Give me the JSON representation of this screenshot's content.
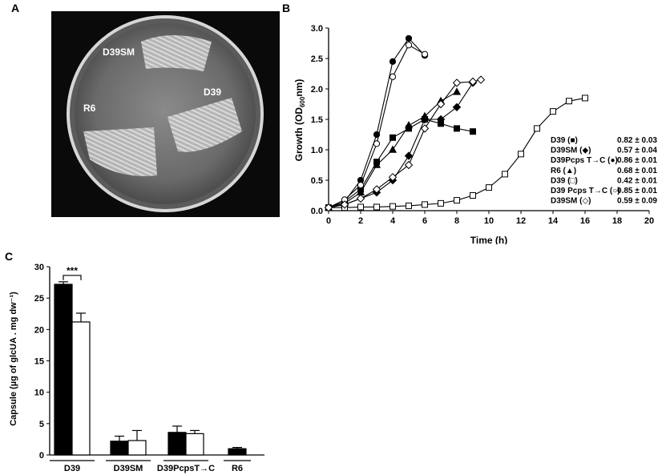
{
  "panels": {
    "a": "A",
    "b": "B",
    "c": "C"
  },
  "photo": {
    "labels": [
      {
        "name": "d39sm",
        "text": "D39SM"
      },
      {
        "name": "d39",
        "text": "D39"
      },
      {
        "name": "r6",
        "text": "R6"
      }
    ]
  },
  "chart_data": [
    {
      "type": "line",
      "panel": "B",
      "xlabel": "Time (h)",
      "ylabel_parts": [
        "Growth (OD",
        "600",
        "nm)"
      ],
      "xlim": [
        0,
        20
      ],
      "ylim": [
        0,
        3.0
      ],
      "xticks": [
        "0",
        "2",
        "4",
        "6",
        "8",
        "10",
        "12",
        "14",
        "16",
        "18",
        "20"
      ],
      "yticks": [
        "0.0",
        "0.5",
        "1.0",
        "1.5",
        "2.0",
        "2.5",
        "3.0"
      ],
      "grid": false,
      "legend_placement": "right",
      "series": [
        {
          "marker": "filled-square",
          "legend": "D39 (■)",
          "rate": "0.82 ± 0.03",
          "points": [
            [
              0,
              0.05
            ],
            [
              1,
              0.15
            ],
            [
              2,
              0.35
            ],
            [
              3,
              0.8
            ],
            [
              4,
              1.2
            ],
            [
              5,
              1.35
            ],
            [
              6,
              1.5
            ],
            [
              7,
              1.43
            ],
            [
              8,
              1.35
            ],
            [
              9,
              1.3
            ]
          ]
        },
        {
          "marker": "filled-diamond",
          "legend": "D39SM (◆)",
          "rate": "0.57 ± 0.04",
          "points": [
            [
              0,
              0.05
            ],
            [
              1,
              0.1
            ],
            [
              2,
              0.2
            ],
            [
              3,
              0.3
            ],
            [
              4,
              0.5
            ],
            [
              5,
              0.9
            ],
            [
              6,
              1.5
            ],
            [
              7,
              1.5
            ],
            [
              8,
              1.7
            ],
            [
              9,
              2.1
            ]
          ]
        },
        {
          "marker": "filled-circle",
          "legend": "D39Pcps T→C (●)",
          "rate": "0.86 ± 0.01",
          "points": [
            [
              0,
              0.05
            ],
            [
              1,
              0.15
            ],
            [
              2,
              0.5
            ],
            [
              3,
              1.25
            ],
            [
              4,
              2.45
            ],
            [
              5,
              2.83
            ],
            [
              6,
              2.55
            ]
          ]
        },
        {
          "marker": "filled-triangle",
          "legend": "R6 (▲)",
          "rate": "0.68 ± 0.01",
          "points": [
            [
              0,
              0.05
            ],
            [
              1,
              0.12
            ],
            [
              2,
              0.3
            ],
            [
              3,
              0.75
            ],
            [
              4,
              1.0
            ],
            [
              5,
              1.4
            ],
            [
              6,
              1.55
            ],
            [
              7,
              1.8
            ],
            [
              8,
              1.95
            ]
          ]
        },
        {
          "marker": "open-square",
          "legend": "D39 (□)",
          "rate": "0.42 ± 0.01",
          "points": [
            [
              0,
              0.05
            ],
            [
              1,
              0.05
            ],
            [
              2,
              0.06
            ],
            [
              3,
              0.06
            ],
            [
              4,
              0.07
            ],
            [
              5,
              0.08
            ],
            [
              6,
              0.1
            ],
            [
              7,
              0.12
            ],
            [
              8,
              0.17
            ],
            [
              9,
              0.25
            ],
            [
              10,
              0.38
            ],
            [
              11,
              0.6
            ],
            [
              12,
              0.93
            ],
            [
              13,
              1.35
            ],
            [
              14,
              1.63
            ],
            [
              15,
              1.8
            ],
            [
              16,
              1.85
            ]
          ]
        },
        {
          "marker": "open-circle",
          "legend": "D39 Pcps T→C (○)",
          "rate": "0.85 ± 0.01",
          "points": [
            [
              0,
              0.05
            ],
            [
              1,
              0.18
            ],
            [
              2,
              0.42
            ],
            [
              3,
              1.1
            ],
            [
              4,
              2.2
            ],
            [
              5,
              2.72
            ],
            [
              6,
              2.57
            ]
          ]
        },
        {
          "marker": "open-diamond",
          "legend": "D39SM (◇)",
          "rate": "0.59 ± 0.09",
          "points": [
            [
              0,
              0.05
            ],
            [
              1,
              0.1
            ],
            [
              2,
              0.2
            ],
            [
              3,
              0.35
            ],
            [
              4,
              0.55
            ],
            [
              5,
              0.75
            ],
            [
              6,
              1.35
            ],
            [
              7,
              1.75
            ],
            [
              8,
              2.1
            ],
            [
              9,
              2.12
            ],
            [
              9.5,
              2.15
            ]
          ]
        }
      ]
    },
    {
      "type": "bar",
      "panel": "C",
      "ylabel": "Capsule (µg of glcUA . mg dw⁻¹)",
      "ylim": [
        0,
        30
      ],
      "yticks": [
        "0",
        "5",
        "10",
        "15",
        "20",
        "25",
        "30"
      ],
      "categories": [
        "D39",
        "D39SM",
        "D39PcpsT→C",
        "R6"
      ],
      "significance": "***",
      "series": [
        {
          "fill": "black",
          "values": [
            27.2,
            2.2,
            3.6,
            1.0
          ],
          "errors": [
            0.4,
            0.8,
            1.0,
            0.2
          ]
        },
        {
          "fill": "white",
          "values": [
            21.2,
            2.3,
            3.4,
            null
          ],
          "errors": [
            1.4,
            1.6,
            0.5,
            null
          ]
        }
      ]
    }
  ]
}
